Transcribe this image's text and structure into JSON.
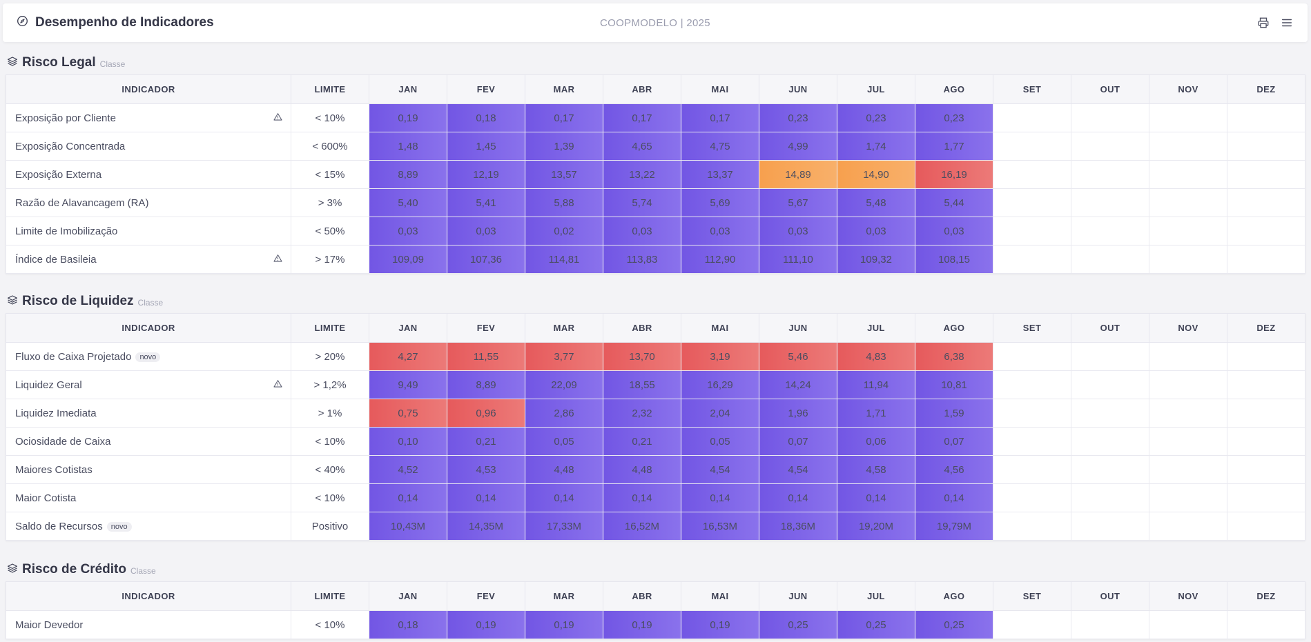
{
  "header": {
    "title": "Desempenho de Indicadores",
    "center": "COOPMODELO | 2025"
  },
  "icons": {
    "title": "compass-icon",
    "print": "printer-icon",
    "menu": "menu-icon",
    "section": "layers-icon",
    "warn": "warning-triangle-icon"
  },
  "colors": {
    "ok": "#7a5fe6",
    "bad": "#e86462",
    "warn": "#f8a75b"
  },
  "columns": {
    "indicador": "INDICADOR",
    "limite": "LIMITE",
    "months": [
      "JAN",
      "FEV",
      "MAR",
      "ABR",
      "MAI",
      "JUN",
      "JUL",
      "AGO",
      "SET",
      "OUT",
      "NOV",
      "DEZ"
    ]
  },
  "sections": [
    {
      "name": "Risco Legal",
      "sub": "Classe",
      "rows": [
        {
          "name": "Exposição por Cliente",
          "badge": "",
          "warn": true,
          "limit": "< 10%",
          "values": [
            "0,19",
            "0,18",
            "0,17",
            "0,17",
            "0,17",
            "0,23",
            "0,23",
            "0,23"
          ],
          "status": [
            "ok",
            "ok",
            "ok",
            "ok",
            "ok",
            "ok",
            "ok",
            "ok"
          ]
        },
        {
          "name": "Exposição Concentrada",
          "badge": "",
          "warn": false,
          "limit": "< 600%",
          "values": [
            "1,48",
            "1,45",
            "1,39",
            "4,65",
            "4,75",
            "4,99",
            "1,74",
            "1,77"
          ],
          "status": [
            "ok",
            "ok",
            "ok",
            "ok",
            "ok",
            "ok",
            "ok",
            "ok"
          ]
        },
        {
          "name": "Exposição Externa",
          "badge": "",
          "warn": false,
          "limit": "< 15%",
          "values": [
            "8,89",
            "12,19",
            "13,57",
            "13,22",
            "13,37",
            "14,89",
            "14,90",
            "16,19"
          ],
          "status": [
            "ok",
            "ok",
            "ok",
            "ok",
            "ok",
            "warn",
            "warn",
            "bad"
          ]
        },
        {
          "name": "Razão de Alavancagem (RA)",
          "badge": "",
          "warn": false,
          "limit": "> 3%",
          "values": [
            "5,40",
            "5,41",
            "5,88",
            "5,74",
            "5,69",
            "5,67",
            "5,48",
            "5,44"
          ],
          "status": [
            "ok",
            "ok",
            "ok",
            "ok",
            "ok",
            "ok",
            "ok",
            "ok"
          ]
        },
        {
          "name": "Limite de Imobilização",
          "badge": "",
          "warn": false,
          "limit": "< 50%",
          "values": [
            "0,03",
            "0,03",
            "0,02",
            "0,03",
            "0,03",
            "0,03",
            "0,03",
            "0,03"
          ],
          "status": [
            "ok",
            "ok",
            "ok",
            "ok",
            "ok",
            "ok",
            "ok",
            "ok"
          ]
        },
        {
          "name": "Índice de Basileia",
          "badge": "",
          "warn": true,
          "limit": "> 17%",
          "values": [
            "109,09",
            "107,36",
            "114,81",
            "113,83",
            "112,90",
            "111,10",
            "109,32",
            "108,15"
          ],
          "status": [
            "ok",
            "ok",
            "ok",
            "ok",
            "ok",
            "ok",
            "ok",
            "ok"
          ]
        }
      ]
    },
    {
      "name": "Risco de Liquidez",
      "sub": "Classe",
      "rows": [
        {
          "name": "Fluxo de Caixa Projetado",
          "badge": "novo",
          "warn": false,
          "limit": "> 20%",
          "values": [
            "4,27",
            "11,55",
            "3,77",
            "13,70",
            "3,19",
            "5,46",
            "4,83",
            "6,38"
          ],
          "status": [
            "bad",
            "bad",
            "bad",
            "bad",
            "bad",
            "bad",
            "bad",
            "bad"
          ]
        },
        {
          "name": "Liquidez Geral",
          "badge": "",
          "warn": true,
          "limit": "> 1,2%",
          "values": [
            "9,49",
            "8,89",
            "22,09",
            "18,55",
            "16,29",
            "14,24",
            "11,94",
            "10,81"
          ],
          "status": [
            "ok",
            "ok",
            "ok",
            "ok",
            "ok",
            "ok",
            "ok",
            "ok"
          ]
        },
        {
          "name": "Liquidez Imediata",
          "badge": "",
          "warn": false,
          "limit": "> 1%",
          "values": [
            "0,75",
            "0,96",
            "2,86",
            "2,32",
            "2,04",
            "1,96",
            "1,71",
            "1,59"
          ],
          "status": [
            "bad",
            "bad",
            "ok",
            "ok",
            "ok",
            "ok",
            "ok",
            "ok"
          ]
        },
        {
          "name": "Ociosidade de Caixa",
          "badge": "",
          "warn": false,
          "limit": "< 10%",
          "values": [
            "0,10",
            "0,21",
            "0,05",
            "0,21",
            "0,05",
            "0,07",
            "0,06",
            "0,07"
          ],
          "status": [
            "ok",
            "ok",
            "ok",
            "ok",
            "ok",
            "ok",
            "ok",
            "ok"
          ]
        },
        {
          "name": "Maiores Cotistas",
          "badge": "",
          "warn": false,
          "limit": "< 40%",
          "values": [
            "4,52",
            "4,53",
            "4,48",
            "4,48",
            "4,54",
            "4,54",
            "4,58",
            "4,56"
          ],
          "status": [
            "ok",
            "ok",
            "ok",
            "ok",
            "ok",
            "ok",
            "ok",
            "ok"
          ]
        },
        {
          "name": "Maior Cotista",
          "badge": "",
          "warn": false,
          "limit": "< 10%",
          "values": [
            "0,14",
            "0,14",
            "0,14",
            "0,14",
            "0,14",
            "0,14",
            "0,14",
            "0,14"
          ],
          "status": [
            "ok",
            "ok",
            "ok",
            "ok",
            "ok",
            "ok",
            "ok",
            "ok"
          ]
        },
        {
          "name": "Saldo de Recursos",
          "badge": "novo",
          "warn": false,
          "limit": "Positivo",
          "values": [
            "10,43M",
            "14,35M",
            "17,33M",
            "16,52M",
            "16,53M",
            "18,36M",
            "19,20M",
            "19,79M"
          ],
          "status": [
            "ok",
            "ok",
            "ok",
            "ok",
            "ok",
            "ok",
            "ok",
            "ok"
          ]
        }
      ]
    },
    {
      "name": "Risco de Crédito",
      "sub": "Classe",
      "rows": [
        {
          "name": "Maior Devedor",
          "badge": "",
          "warn": false,
          "limit": "< 10%",
          "values": [
            "0,18",
            "0,19",
            "0,19",
            "0,19",
            "0,19",
            "0,25",
            "0,25",
            "0,25"
          ],
          "status": [
            "ok",
            "ok",
            "ok",
            "ok",
            "ok",
            "ok",
            "ok",
            "ok"
          ]
        }
      ]
    }
  ]
}
